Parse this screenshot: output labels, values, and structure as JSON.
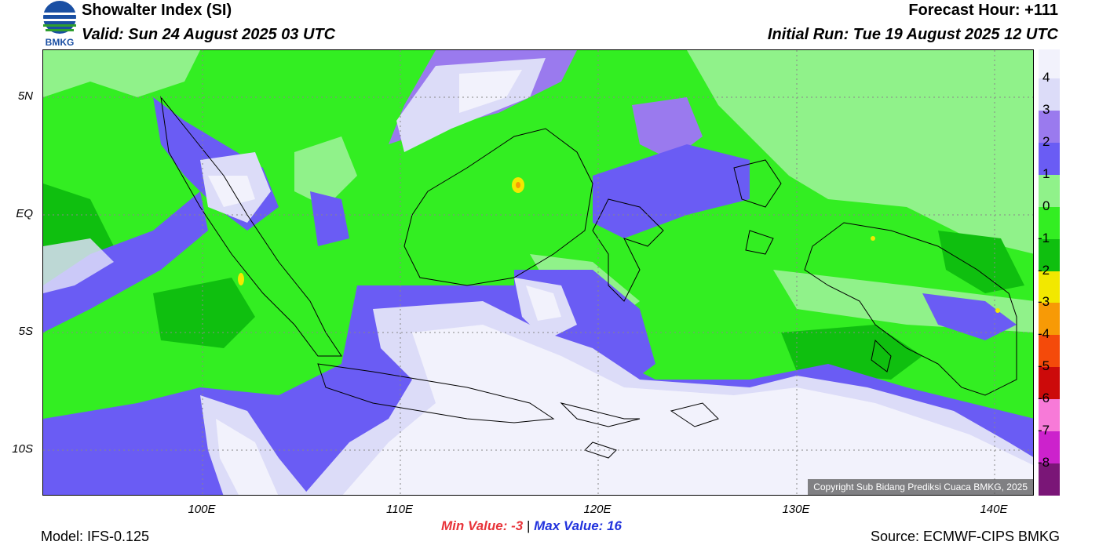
{
  "header": {
    "title": "Showalter Index (SI)",
    "valid": "Valid: Sun 24 August 2025 03 UTC",
    "forecast_hour": "Forecast Hour: +111",
    "initial_run": "Initial Run: Tue 19 August 2025 12 UTC"
  },
  "logo": {
    "text": "BMKG"
  },
  "axes": {
    "lat_labels": [
      "5N",
      "EQ",
      "5S",
      "10S"
    ],
    "lon_labels": [
      "100E",
      "110E",
      "120E",
      "130E",
      "140E"
    ]
  },
  "legend": {
    "labels": [
      "4",
      "3",
      "2",
      "1",
      "0",
      "-1",
      "-2",
      "-3",
      "-4",
      "-5",
      "-6",
      "-7",
      "-8"
    ],
    "colors": [
      "#f2f2fc",
      "#dcdcf8",
      "#9a7aee",
      "#6a5cf4",
      "#90f28a",
      "#33ee22",
      "#0fbf0f",
      "#f2e800",
      "#f79a06",
      "#f44a0a",
      "#cc0a0a",
      "#f77ad8",
      "#cc22cc",
      "#7a1677"
    ]
  },
  "copyright": "Copyright Sub Bidang Prediksi Cuaca BMKG, 2025",
  "stats": {
    "min_label": "Min Value:",
    "min_value": "-3",
    "separator": "|",
    "max_label": "Max Value:",
    "max_value": "16"
  },
  "footer": {
    "model": "Model: IFS-0.125",
    "source": "Source: ECMWF-CIPS BMKG"
  }
}
